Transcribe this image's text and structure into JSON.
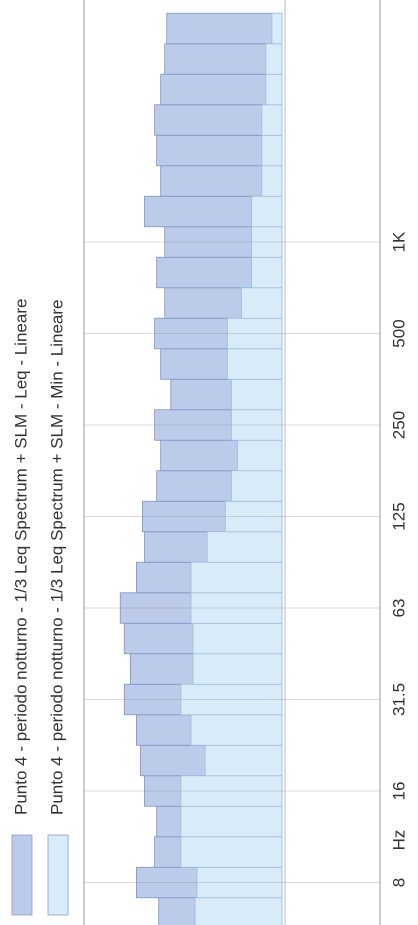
{
  "chart_data": {
    "type": "bar",
    "orientation": "rotated",
    "x_unit_label": "Hz",
    "categories": [
      null,
      "8",
      null,
      null,
      "16",
      null,
      null,
      "31.5",
      null,
      null,
      "63",
      null,
      null,
      "125",
      null,
      null,
      "250",
      null,
      null,
      "500",
      null,
      null,
      "1K",
      null,
      null,
      null,
      null,
      null,
      null,
      null
    ],
    "series": [
      {
        "name": "Punto 4 - periodo notturno - 1/3 Leq Spectrum + SLM - Leq - Lineare",
        "color": "#bccbea",
        "values": [
          61,
          72,
          63,
          62,
          68,
          70,
          72,
          78,
          75,
          78,
          80,
          72,
          68,
          69,
          62,
          60,
          63,
          55,
          60,
          63,
          58,
          62,
          58,
          68,
          60,
          62,
          63,
          60,
          58,
          57
        ]
      },
      {
        "name": "Punto 4 - periodo notturno - 1/3 Leq Spectrum + SLM - Min - Lineare",
        "color": "#d9ebf8",
        "values": [
          43,
          42,
          50,
          50,
          50,
          38,
          45,
          50,
          44,
          44,
          45,
          45,
          37,
          28,
          25,
          22,
          25,
          25,
          27,
          27,
          20,
          15,
          15,
          15,
          10,
          10,
          10,
          8,
          8,
          5
        ]
      }
    ],
    "ylim": [
      0,
      90
    ]
  }
}
